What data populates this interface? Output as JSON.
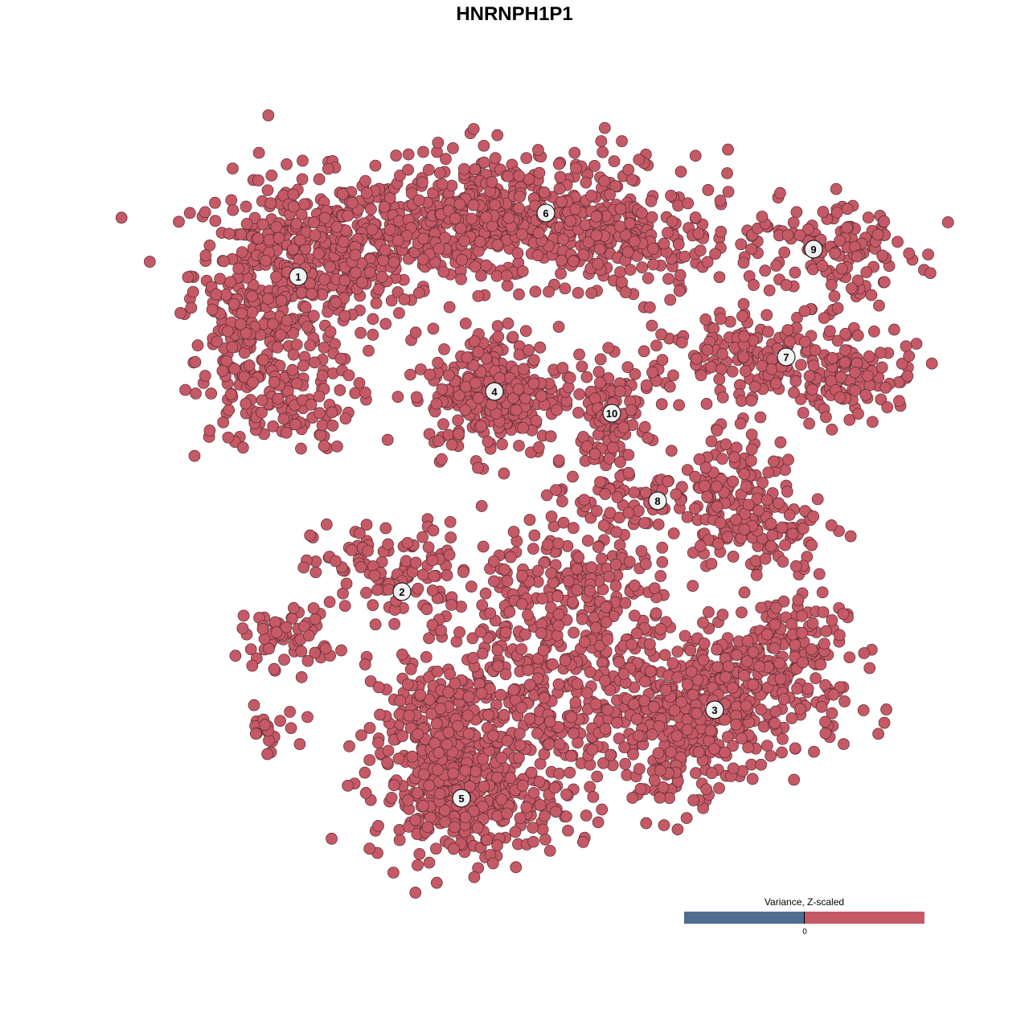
{
  "chart_data": {
    "type": "scatter",
    "title": "HNRNPH1P1",
    "xlabel": "",
    "ylabel": "",
    "xlim": [
      -45,
      50
    ],
    "ylim": [
      -46,
      50
    ],
    "grid": false,
    "point_color": "#C55A66",
    "point_edge_color": "#5a2a30",
    "clusters": [
      {
        "label": "1",
        "center": [
          -26.9,
          29.6
        ]
      },
      {
        "label": "2",
        "center": [
          -14.0,
          -9.6
        ]
      },
      {
        "label": "3",
        "center": [
          24.9,
          -24.3
        ]
      },
      {
        "label": "4",
        "center": [
          -2.5,
          15.3
        ]
      },
      {
        "label": "5",
        "center": [
          -6.6,
          -35.3
        ]
      },
      {
        "label": "6",
        "center": [
          3.9,
          37.5
        ]
      },
      {
        "label": "7",
        "center": [
          33.8,
          19.6
        ]
      },
      {
        "label": "8",
        "center": [
          17.8,
          1.7
        ]
      },
      {
        "label": "9",
        "center": [
          37.2,
          33.0
        ]
      },
      {
        "label": "10",
        "center": [
          12.1,
          12.6
        ]
      }
    ],
    "legend": {
      "title": "Variance, Z-scaled",
      "tick_label": "0",
      "low_color": "#4F6D8F",
      "high_color": "#C55A66",
      "placement": "bottom-right"
    }
  }
}
